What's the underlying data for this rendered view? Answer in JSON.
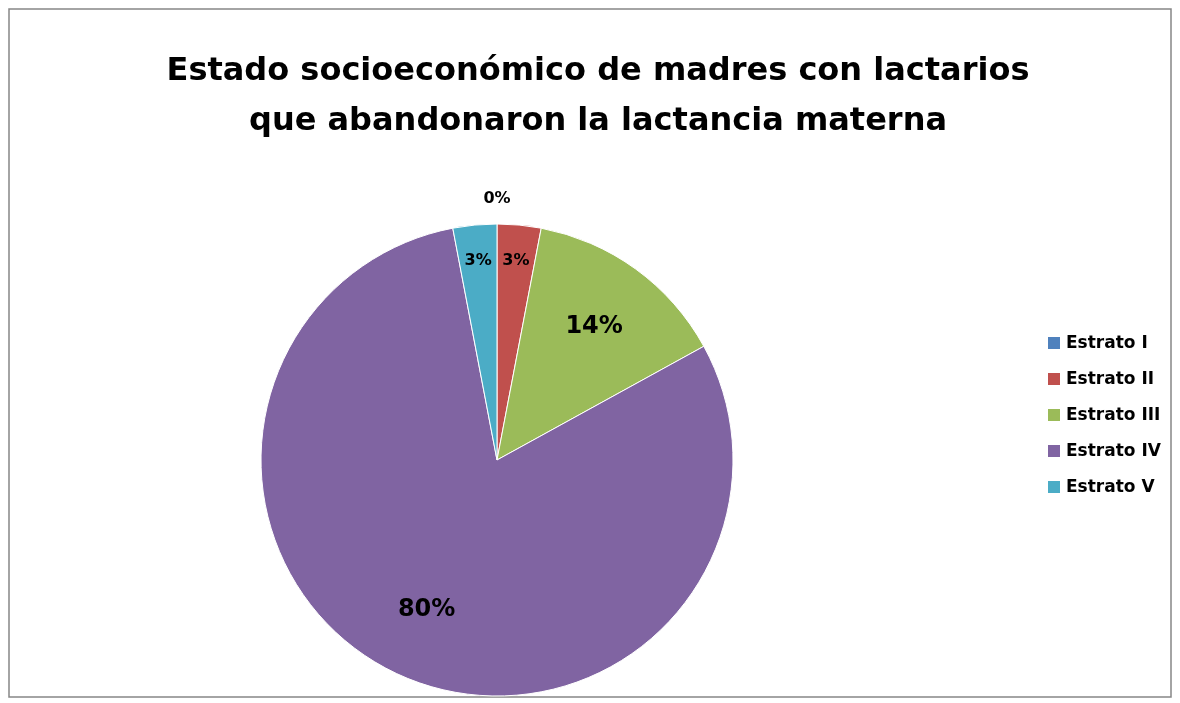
{
  "chart_data": {
    "type": "pie",
    "title": "Estado socioeconómico de madres con lactarios que abandonaron la lactancia materna",
    "categories": [
      "Estrato I",
      "Estrato II",
      "Estrato III",
      "Estrato IV",
      "Estrato V"
    ],
    "values": [
      0,
      3,
      14,
      80,
      3
    ],
    "colors": [
      "#4f81bd",
      "#c0504d",
      "#9bbb59",
      "#8064a2",
      "#4bacc6"
    ],
    "value_labels": [
      "0%",
      "3%",
      "14%",
      "80%",
      "3%"
    ],
    "legend": "right"
  }
}
